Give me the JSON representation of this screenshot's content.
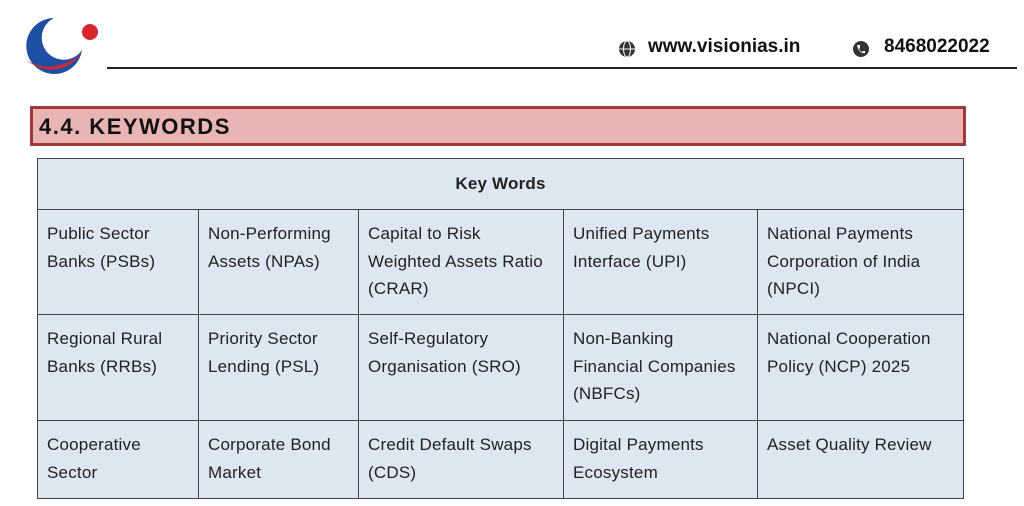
{
  "header": {
    "website": "www.visionias.in",
    "phone": "8468022022"
  },
  "section": {
    "title": "4.4. KEYWORDS"
  },
  "table": {
    "caption": "Key Words",
    "rows": [
      [
        "Public Sector Banks (PSBs)",
        "Non-Performing Assets (NPAs)",
        "Capital to Risk Weighted Assets Ratio (CRAR)",
        "Unified Payments Interface (UPI)",
        "National Payments Corporation of India (NPCI)"
      ],
      [
        "Regional Rural Banks (RRBs)",
        "Priority Sector Lending (PSL)",
        "Self-Regulatory Organisation (SRO)",
        "Non-Banking Financial Companies (NBFCs)",
        "National Cooperation Policy (NCP) 2025"
      ],
      [
        "Cooperative Sector",
        "Corporate Bond Market",
        "Credit Default Swaps (CDS)",
        "Digital Payments Ecosystem",
        "Asset Quality Review"
      ]
    ]
  }
}
